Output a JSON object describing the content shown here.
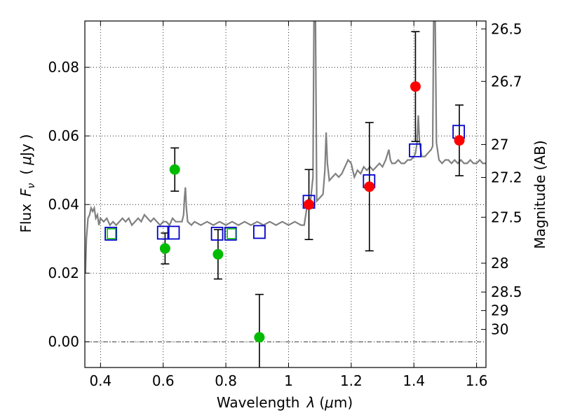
{
  "chart_data": {
    "type": "scatter",
    "xlabel_text": "Wavelength",
    "xlabel_symbol": "λ",
    "xlabel_unit_open": "(",
    "xlabel_unit_mu": "μ",
    "xlabel_unit_rest": "m)",
    "ylabel_text": "Flux",
    "ylabel_symbol": "F",
    "ylabel_subscript": "ν",
    "ylabel_unit_open": "(",
    "ylabel_unit_mu": "μ",
    "ylabel_unit_rest": "Jy",
    "ylabel_unit_close": ")",
    "ylabel_right": "Magnitude (AB)",
    "xlim": [
      0.35,
      1.63
    ],
    "ylim": [
      -0.0075,
      0.0935
    ],
    "grid": true,
    "x_ticks": [
      {
        "v": 0.4,
        "label": "0.4"
      },
      {
        "v": 0.6,
        "label": "0.6"
      },
      {
        "v": 0.8,
        "label": "0.8"
      },
      {
        "v": 1.0,
        "label": "1"
      },
      {
        "v": 1.2,
        "label": "1.2"
      },
      {
        "v": 1.4,
        "label": "1.4"
      },
      {
        "v": 1.6,
        "label": "1.6"
      }
    ],
    "y_ticks": [
      {
        "v": 0.0,
        "label": "0.00"
      },
      {
        "v": 0.02,
        "label": "0.02"
      },
      {
        "v": 0.04,
        "label": "0.04"
      },
      {
        "v": 0.06,
        "label": "0.06"
      },
      {
        "v": 0.08,
        "label": "0.08"
      }
    ],
    "mag_ticks": [
      {
        "label": "26.5",
        "flux": 0.0912
      },
      {
        "label": "26.7",
        "flux": 0.0759
      },
      {
        "label": "27",
        "flux": 0.0575
      },
      {
        "label": "27.2",
        "flux": 0.0479
      },
      {
        "label": "27.5",
        "flux": 0.0363
      },
      {
        "label": "28",
        "flux": 0.0229
      },
      {
        "label": "28.5",
        "flux": 0.0145
      },
      {
        "label": "29",
        "flux": 0.0091
      },
      {
        "label": "30",
        "flux": 0.0036
      }
    ],
    "spectrum": {
      "color": "#808080",
      "points": [
        [
          0.352,
          0.02
        ],
        [
          0.355,
          0.03
        ],
        [
          0.36,
          0.036
        ],
        [
          0.365,
          0.037
        ],
        [
          0.37,
          0.039
        ],
        [
          0.375,
          0.038
        ],
        [
          0.38,
          0.039
        ],
        [
          0.385,
          0.036
        ],
        [
          0.39,
          0.037
        ],
        [
          0.395,
          0.034
        ],
        [
          0.4,
          0.036
        ],
        [
          0.41,
          0.035
        ],
        [
          0.42,
          0.036
        ],
        [
          0.43,
          0.034
        ],
        [
          0.44,
          0.035
        ],
        [
          0.45,
          0.034
        ],
        [
          0.46,
          0.035
        ],
        [
          0.47,
          0.036
        ],
        [
          0.48,
          0.035
        ],
        [
          0.49,
          0.036
        ],
        [
          0.5,
          0.034
        ],
        [
          0.51,
          0.035
        ],
        [
          0.52,
          0.036
        ],
        [
          0.53,
          0.035
        ],
        [
          0.54,
          0.037
        ],
        [
          0.55,
          0.036
        ],
        [
          0.56,
          0.035
        ],
        [
          0.57,
          0.036
        ],
        [
          0.58,
          0.035
        ],
        [
          0.59,
          0.034
        ],
        [
          0.6,
          0.035
        ],
        [
          0.61,
          0.035
        ],
        [
          0.62,
          0.034
        ],
        [
          0.63,
          0.036
        ],
        [
          0.64,
          0.035
        ],
        [
          0.65,
          0.035
        ],
        [
          0.66,
          0.035
        ],
        [
          0.665,
          0.037
        ],
        [
          0.668,
          0.042
        ],
        [
          0.671,
          0.045
        ],
        [
          0.674,
          0.039
        ],
        [
          0.678,
          0.035
        ],
        [
          0.69,
          0.034
        ],
        [
          0.7,
          0.035
        ],
        [
          0.72,
          0.034
        ],
        [
          0.74,
          0.035
        ],
        [
          0.76,
          0.034
        ],
        [
          0.78,
          0.035
        ],
        [
          0.8,
          0.034
        ],
        [
          0.82,
          0.035
        ],
        [
          0.84,
          0.034
        ],
        [
          0.86,
          0.035
        ],
        [
          0.88,
          0.034
        ],
        [
          0.9,
          0.035
        ],
        [
          0.92,
          0.034
        ],
        [
          0.94,
          0.035
        ],
        [
          0.96,
          0.034
        ],
        [
          0.98,
          0.035
        ],
        [
          1.0,
          0.034
        ],
        [
          1.02,
          0.035
        ],
        [
          1.04,
          0.034
        ],
        [
          1.05,
          0.034
        ],
        [
          1.06,
          0.04
        ],
        [
          1.065,
          0.042
        ],
        [
          1.07,
          0.041
        ],
        [
          1.078,
          0.048
        ],
        [
          1.081,
          0.0935
        ],
        [
          1.086,
          0.0935
        ],
        [
          1.09,
          0.041
        ],
        [
          1.1,
          0.042
        ],
        [
          1.11,
          0.043
        ],
        [
          1.116,
          0.05
        ],
        [
          1.12,
          0.061
        ],
        [
          1.124,
          0.052
        ],
        [
          1.13,
          0.047
        ],
        [
          1.14,
          0.048
        ],
        [
          1.15,
          0.049
        ],
        [
          1.16,
          0.048
        ],
        [
          1.17,
          0.049
        ],
        [
          1.18,
          0.051
        ],
        [
          1.19,
          0.053
        ],
        [
          1.2,
          0.052
        ],
        [
          1.21,
          0.048
        ],
        [
          1.22,
          0.05
        ],
        [
          1.23,
          0.049
        ],
        [
          1.24,
          0.051
        ],
        [
          1.25,
          0.05
        ],
        [
          1.26,
          0.051
        ],
        [
          1.27,
          0.05
        ],
        [
          1.28,
          0.051
        ],
        [
          1.29,
          0.052
        ],
        [
          1.3,
          0.051
        ],
        [
          1.31,
          0.053
        ],
        [
          1.32,
          0.056
        ],
        [
          1.325,
          0.053
        ],
        [
          1.33,
          0.052
        ],
        [
          1.34,
          0.052
        ],
        [
          1.35,
          0.053
        ],
        [
          1.36,
          0.052
        ],
        [
          1.37,
          0.052
        ],
        [
          1.38,
          0.053
        ],
        [
          1.39,
          0.053
        ],
        [
          1.4,
          0.054
        ],
        [
          1.405,
          0.055
        ],
        [
          1.41,
          0.058
        ],
        [
          1.414,
          0.066
        ],
        [
          1.418,
          0.058
        ],
        [
          1.425,
          0.054
        ],
        [
          1.435,
          0.054
        ],
        [
          1.445,
          0.055
        ],
        [
          1.455,
          0.056
        ],
        [
          1.46,
          0.057
        ],
        [
          1.463,
          0.0935
        ],
        [
          1.468,
          0.0935
        ],
        [
          1.472,
          0.058
        ],
        [
          1.48,
          0.053
        ],
        [
          1.49,
          0.052
        ],
        [
          1.5,
          0.053
        ],
        [
          1.51,
          0.053
        ],
        [
          1.52,
          0.052
        ],
        [
          1.53,
          0.053
        ],
        [
          1.54,
          0.052
        ],
        [
          1.55,
          0.053
        ],
        [
          1.56,
          0.052
        ],
        [
          1.57,
          0.052
        ],
        [
          1.58,
          0.053
        ],
        [
          1.59,
          0.052
        ],
        [
          1.6,
          0.052
        ],
        [
          1.61,
          0.053
        ],
        [
          1.62,
          0.052
        ],
        [
          1.63,
          0.052
        ]
      ]
    },
    "model_photometry": {
      "color": "#0000cc",
      "points": [
        [
          0.433,
          0.0315
        ],
        [
          0.6,
          0.0318
        ],
        [
          0.633,
          0.0318
        ],
        [
          0.772,
          0.0315
        ],
        [
          0.815,
          0.0315
        ],
        [
          0.907,
          0.032
        ],
        [
          1.065,
          0.0408
        ],
        [
          1.257,
          0.0468
        ],
        [
          1.404,
          0.0558
        ],
        [
          1.543,
          0.0612
        ]
      ]
    },
    "green_points": {
      "color": "#00bb00",
      "points": [
        {
          "x": 0.435,
          "y": 0.0315,
          "err": null
        },
        {
          "x": 0.606,
          "y": 0.0272,
          "err": [
            0.0045,
            0.0045
          ]
        },
        {
          "x": 0.637,
          "y": 0.0502,
          "err": [
            0.0063,
            0.0063
          ]
        },
        {
          "x": 0.775,
          "y": 0.0255,
          "err": [
            0.0072,
            0.0072
          ]
        },
        {
          "x": 0.818,
          "y": 0.0315,
          "err": null
        },
        {
          "x": 0.907,
          "y": 0.0013,
          "err": [
            0.0125,
            0.0125
          ]
        }
      ]
    },
    "red_points": {
      "color": "#ff0000",
      "points": [
        {
          "x": 1.065,
          "y": 0.04,
          "err": [
            0.0102,
            0.0102
          ]
        },
        {
          "x": 1.258,
          "y": 0.0452,
          "err": [
            0.0187,
            0.0187
          ]
        },
        {
          "x": 1.405,
          "y": 0.0744,
          "err": [
            0.016,
            0.016
          ]
        },
        {
          "x": 1.545,
          "y": 0.0587,
          "err": [
            0.0103,
            0.0103
          ]
        }
      ]
    }
  }
}
